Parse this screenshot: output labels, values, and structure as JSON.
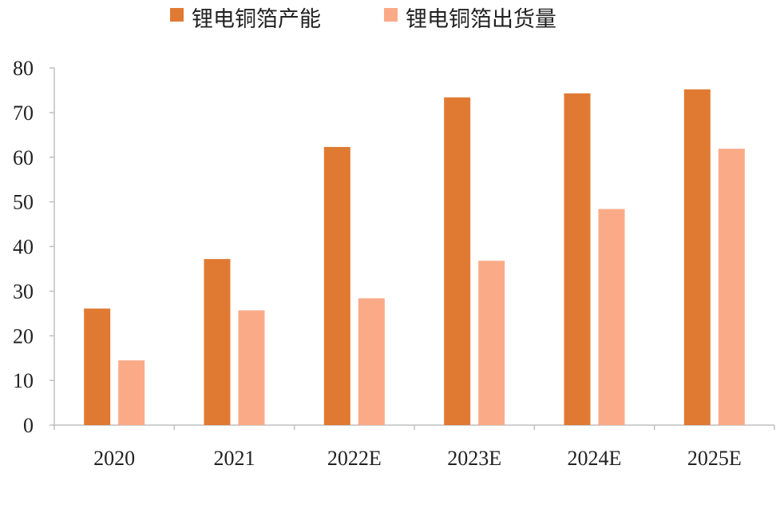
{
  "chart_data": {
    "type": "bar",
    "title": "",
    "xlabel": "",
    "ylabel": "",
    "categories": [
      "2020",
      "2021",
      "2022E",
      "2023E",
      "2024E",
      "2025E"
    ],
    "series": [
      {
        "name": "锂电铜箔产能",
        "color": "#E07A33",
        "values": [
          26.1,
          37.2,
          62.3,
          73.4,
          74.3,
          75.2
        ]
      },
      {
        "name": "锂电铜箔出货量",
        "color": "#FBAA88",
        "values": [
          14.5,
          25.7,
          28.4,
          36.8,
          48.4,
          61.9
        ]
      }
    ],
    "ylim": [
      0,
      80
    ],
    "yticks": [
      0,
      10,
      20,
      30,
      40,
      50,
      60,
      70,
      80
    ],
    "grid": false,
    "legend_position": "top"
  }
}
